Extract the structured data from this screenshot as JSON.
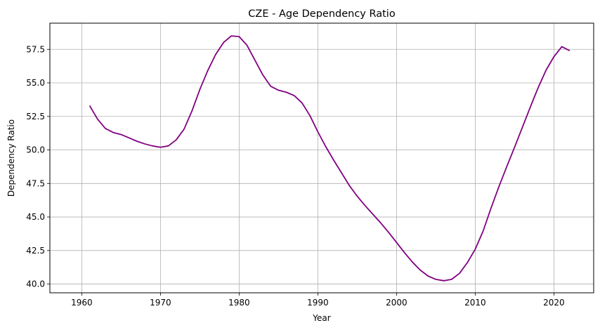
{
  "chart_data": {
    "type": "line",
    "title": "CZE - Age Dependency Ratio",
    "xlabel": "Year",
    "ylabel": "Dependency Ratio",
    "xlim": [
      1955.95,
      2025.05
    ],
    "ylim": [
      39.35,
      59.45
    ],
    "xticks": [
      1960,
      1970,
      1980,
      1990,
      2000,
      2010,
      2020
    ],
    "yticks": [
      40.0,
      42.5,
      45.0,
      47.5,
      50.0,
      52.5,
      55.0,
      57.5
    ],
    "ytick_labels": [
      "40.0",
      "42.5",
      "45.0",
      "47.5",
      "50.0",
      "52.5",
      "55.0",
      "57.5"
    ],
    "grid": true,
    "line_color": "#800080",
    "series": [
      {
        "x": [
          1961,
          1962,
          1963,
          1964,
          1965,
          1966,
          1967,
          1968,
          1969,
          1970,
          1971,
          1972,
          1973,
          1974,
          1975,
          1976,
          1977,
          1978,
          1979,
          1980,
          1981,
          1982,
          1983,
          1984,
          1985,
          1986,
          1987,
          1988,
          1989,
          1990,
          1991,
          1992,
          1993,
          1994,
          1995,
          1996,
          1997,
          1998,
          1999,
          2000,
          2001,
          2002,
          2003,
          2004,
          2005,
          2006,
          2007,
          2008,
          2009,
          2010,
          2011,
          2012,
          2013,
          2014,
          2015,
          2016,
          2017,
          2018,
          2019,
          2020,
          2021,
          2022
        ],
        "values": [
          53.3,
          52.3,
          51.6,
          51.3,
          51.15,
          50.9,
          50.65,
          50.45,
          50.3,
          50.2,
          50.3,
          50.75,
          51.55,
          52.9,
          54.5,
          55.9,
          57.1,
          58.0,
          58.5,
          58.45,
          57.8,
          56.7,
          55.6,
          54.75,
          54.45,
          54.3,
          54.05,
          53.5,
          52.55,
          51.35,
          50.25,
          49.25,
          48.3,
          47.35,
          46.55,
          45.85,
          45.2,
          44.55,
          43.85,
          43.1,
          42.35,
          41.65,
          41.05,
          40.6,
          40.35,
          40.25,
          40.35,
          40.8,
          41.6,
          42.6,
          43.95,
          45.65,
          47.25,
          48.75,
          50.2,
          51.7,
          53.2,
          54.65,
          55.95,
          56.95,
          57.7,
          57.4
        ]
      }
    ]
  }
}
